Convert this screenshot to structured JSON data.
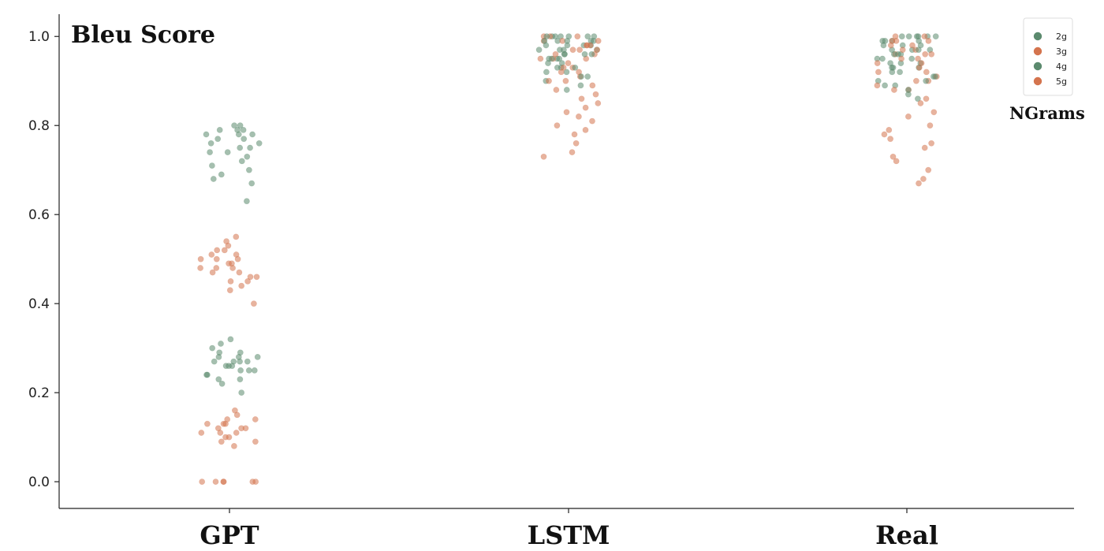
{
  "chart_data": {
    "type": "scatter",
    "subtype": "strip",
    "title": "Bleu Score",
    "xlabel": "",
    "ylabel": "",
    "categories": [
      "GPT",
      "LSTM",
      "Real"
    ],
    "ylim": [
      -0.06,
      1.05
    ],
    "yticks": [
      0.0,
      0.2,
      0.4,
      0.6,
      0.8,
      1.0
    ],
    "ytick_labels": [
      "0.0",
      "0.2",
      "0.4",
      "0.6",
      "0.8",
      "1.0"
    ],
    "grid": false,
    "legend": {
      "title": "NGrams",
      "position": "top-right"
    },
    "series": [
      {
        "name": "2g",
        "color": "#5b8a6e",
        "values": {
          "GPT": [
            0.78,
            0.77,
            0.79,
            0.76,
            0.8,
            0.75,
            0.74,
            0.78,
            0.72,
            0.7,
            0.77,
            0.79,
            0.73,
            0.76,
            0.8,
            0.68,
            0.71,
            0.63,
            0.67,
            0.75,
            0.78,
            0.74,
            0.79,
            0.69
          ],
          "LSTM": [
            1.0,
            1.0,
            0.99,
            0.98,
            0.97,
            0.96,
            1.0,
            0.95,
            0.94,
            0.99,
            0.93,
            1.0,
            0.97,
            0.92,
            0.98,
            1.0,
            0.96,
            0.99,
            0.91,
            0.95
          ],
          "Real": [
            1.0,
            1.0,
            0.99,
            0.98,
            0.97,
            0.95,
            1.0,
            0.94,
            0.93,
            0.99,
            0.92,
            0.96,
            1.0,
            0.91,
            0.98,
            0.9,
            0.97,
            0.89,
            1.0,
            0.95
          ]
        }
      },
      {
        "name": "3g",
        "color": "#d4744e",
        "values": {
          "GPT": [
            0.5,
            0.48,
            0.52,
            0.47,
            0.45,
            0.53,
            0.49,
            0.46,
            0.51,
            0.44,
            0.5,
            0.48,
            0.54,
            0.43,
            0.47,
            0.52,
            0.49,
            0.46,
            0.51,
            0.45,
            0.4,
            0.55,
            0.48,
            0.5
          ],
          "LSTM": [
            1.0,
            0.99,
            0.98,
            0.97,
            0.96,
            0.95,
            0.99,
            0.94,
            1.0,
            0.93,
            0.92,
            0.98,
            0.97,
            0.91,
            0.99,
            0.96,
            1.0,
            0.95,
            0.9,
            0.98
          ],
          "Real": [
            1.0,
            0.99,
            0.98,
            0.96,
            0.95,
            0.97,
            0.94,
            0.99,
            0.93,
            0.92,
            1.0,
            0.91,
            0.98,
            0.9,
            0.96,
            0.89,
            0.99,
            0.88,
            0.97,
            0.95
          ]
        }
      },
      {
        "name": "4g",
        "color": "#5b8a6e",
        "values": {
          "GPT": [
            0.27,
            0.26,
            0.28,
            0.25,
            0.29,
            0.24,
            0.27,
            0.3,
            0.23,
            0.26,
            0.28,
            0.25,
            0.31,
            0.22,
            0.27,
            0.29,
            0.24,
            0.26,
            0.28,
            0.2,
            0.32,
            0.25,
            0.27,
            0.23
          ],
          "LSTM": [
            0.99,
            0.98,
            1.0,
            0.96,
            0.95,
            0.97,
            0.93,
            0.94,
            0.99,
            0.92,
            0.9,
            0.98,
            0.96,
            0.91,
            0.89,
            0.97,
            0.95,
            0.88,
            1.0,
            0.93
          ],
          "Real": [
            0.99,
            0.97,
            0.96,
            1.0,
            0.94,
            0.93,
            0.95,
            0.91,
            0.92,
            0.98,
            0.89,
            0.9,
            0.96,
            0.87,
            0.94,
            0.88,
            0.97,
            0.86,
            0.93,
            0.99
          ]
        }
      },
      {
        "name": "5g",
        "color": "#d4744e",
        "values": {
          "GPT": [
            0.12,
            0.11,
            0.13,
            0.1,
            0.14,
            0.09,
            0.12,
            0.15,
            0.08,
            0.11,
            0.13,
            0.1,
            0.16,
            0.12,
            0.09,
            0.14,
            0.11,
            0.13,
            0.0,
            0.0,
            0.0,
            0.0,
            0.0,
            0.0
          ],
          "LSTM": [
            0.97,
            0.95,
            0.93,
            0.92,
            0.9,
            0.89,
            0.88,
            0.87,
            0.86,
            0.85,
            0.84,
            0.83,
            0.82,
            0.81,
            0.8,
            0.79,
            0.78,
            0.76,
            0.74,
            0.73
          ],
          "Real": [
            0.96,
            0.94,
            0.92,
            0.9,
            0.88,
            0.86,
            0.85,
            0.83,
            0.82,
            0.8,
            0.79,
            0.78,
            0.77,
            0.76,
            0.75,
            0.73,
            0.72,
            0.7,
            0.68,
            0.67
          ]
        }
      }
    ]
  }
}
